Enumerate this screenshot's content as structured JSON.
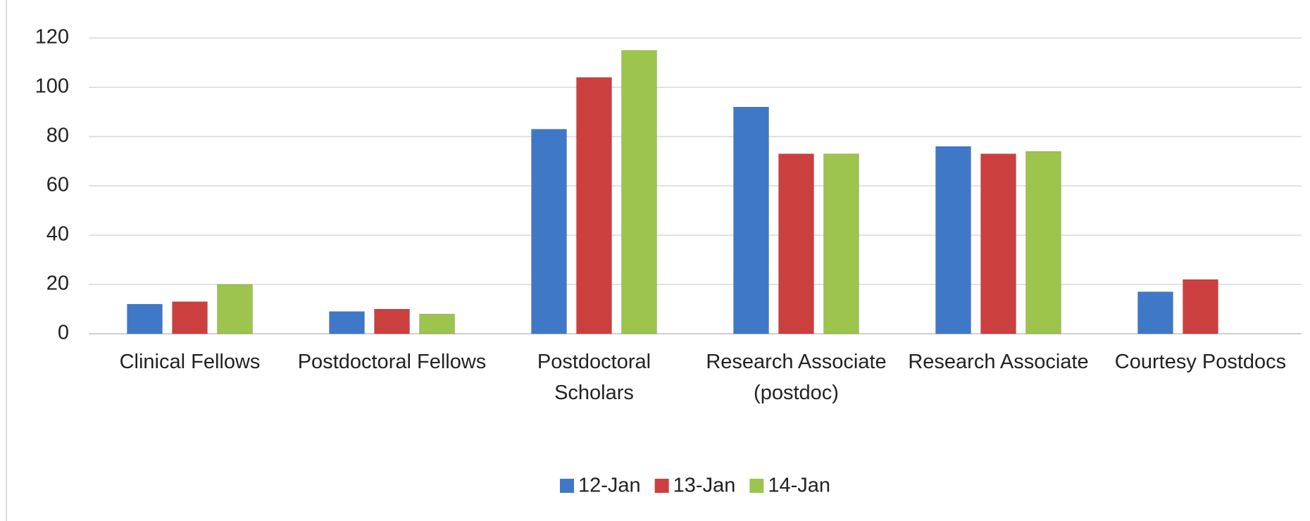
{
  "chart_data": {
    "type": "bar",
    "categories": [
      "Clinical Fellows",
      "Postdoctoral Fellows",
      "Postdoctoral Scholars",
      "Research Associate (postdoc)",
      "Research Associate",
      "Courtesy Postdocs"
    ],
    "series": [
      {
        "name": "12-Jan",
        "color": "#4078c8",
        "values": [
          12,
          9,
          83,
          92,
          76,
          17
        ]
      },
      {
        "name": "13-Jan",
        "color": "#cc3f3f",
        "values": [
          13,
          10,
          104,
          73,
          73,
          22
        ]
      },
      {
        "name": "14-Jan",
        "color": "#9dc44c",
        "values": [
          20,
          8,
          115,
          73,
          74,
          null
        ]
      }
    ],
    "ylim": [
      0,
      120
    ],
    "yticks": [
      0,
      20,
      40,
      60,
      80,
      100,
      120
    ],
    "grid": true,
    "legend": "bottom"
  }
}
